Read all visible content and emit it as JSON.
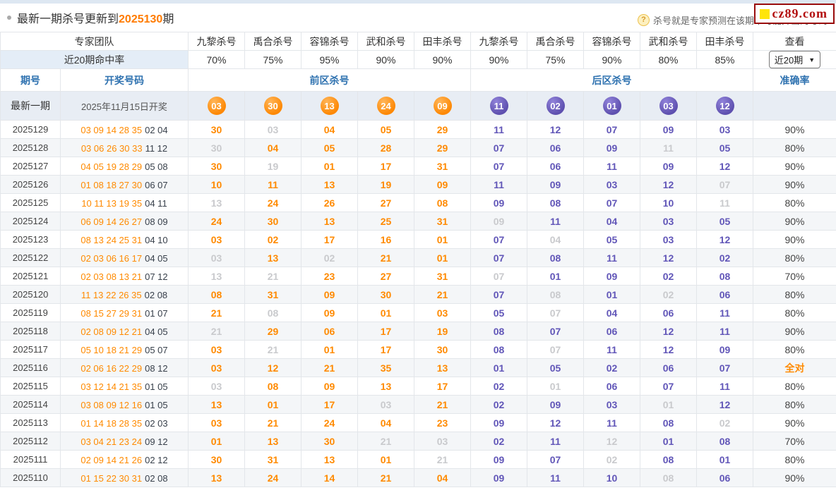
{
  "header_bar": {
    "title_prefix": "最新一期杀号更新到",
    "title_period": "2025130",
    "title_suffix": "期",
    "help_text": "杀号就是专家预测在该期不可能开出的号码",
    "logo_text": "cz89.com",
    "logo_border_color": "#990c0c",
    "logo_square_color": "#ffe50a"
  },
  "experts_header": {
    "team_label": "专家团队",
    "columns": [
      "九黎杀号",
      "禹合杀号",
      "容锦杀号",
      "武和杀号",
      "田丰杀号",
      "九黎杀号",
      "禹合杀号",
      "容锦杀号",
      "武和杀号",
      "田丰杀号"
    ],
    "view_label": "查看"
  },
  "hit_rate_row": {
    "label": "近20期命中率",
    "rates": [
      "70%",
      "75%",
      "95%",
      "90%",
      "90%",
      "90%",
      "75%",
      "90%",
      "80%",
      "85%"
    ],
    "select_value": "近20期"
  },
  "table_header": {
    "period": "期号",
    "draw_numbers": "开奖号码",
    "front_zone": "前区杀号",
    "back_zone": "后区杀号",
    "accuracy": "准确率"
  },
  "latest_row": {
    "label": "最新一期",
    "date": "2025年11月15日开奖",
    "front_kills": [
      "03",
      "30",
      "13",
      "24",
      "09"
    ],
    "back_kills": [
      "11",
      "02",
      "01",
      "03",
      "12"
    ]
  },
  "legend": {
    "gray_marker": "*",
    "gray_meaning": "kill number appeared in that draw (prediction missed), rendered gray"
  },
  "colors": {
    "front_accent": "#ff8a00",
    "back_accent": "#6156b8",
    "missed_gray": "#c9cacd",
    "header_blue": "#2f72b0",
    "latest_row_bg": "#e8edf4"
  },
  "rows": [
    {
      "period": "2025129",
      "front_draw": "03 09 14 28 35",
      "back_draw": "02 04",
      "front_kills": [
        "30",
        "*03",
        "04",
        "05",
        "29"
      ],
      "back_kills": [
        "11",
        "12",
        "07",
        "09",
        "03"
      ],
      "accuracy": "90%",
      "perfect": false
    },
    {
      "period": "2025128",
      "front_draw": "03 06 26 30 33",
      "back_draw": "11 12",
      "front_kills": [
        "*30",
        "04",
        "05",
        "28",
        "29"
      ],
      "back_kills": [
        "07",
        "06",
        "09",
        "*11",
        "05"
      ],
      "accuracy": "80%",
      "perfect": false
    },
    {
      "period": "2025127",
      "front_draw": "04 05 19 28 29",
      "back_draw": "05 08",
      "front_kills": [
        "30",
        "*19",
        "01",
        "17",
        "31"
      ],
      "back_kills": [
        "07",
        "06",
        "11",
        "09",
        "12"
      ],
      "accuracy": "90%",
      "perfect": false
    },
    {
      "period": "2025126",
      "front_draw": "01 08 18 27 30",
      "back_draw": "06 07",
      "front_kills": [
        "10",
        "11",
        "13",
        "19",
        "09"
      ],
      "back_kills": [
        "11",
        "09",
        "03",
        "12",
        "*07"
      ],
      "accuracy": "90%",
      "perfect": false
    },
    {
      "period": "2025125",
      "front_draw": "10 11 13 19 35",
      "back_draw": "04 11",
      "front_kills": [
        "*13",
        "24",
        "26",
        "27",
        "08"
      ],
      "back_kills": [
        "09",
        "08",
        "07",
        "10",
        "*11"
      ],
      "accuracy": "80%",
      "perfect": false
    },
    {
      "period": "2025124",
      "front_draw": "06 09 14 26 27",
      "back_draw": "08 09",
      "front_kills": [
        "24",
        "30",
        "13",
        "25",
        "31"
      ],
      "back_kills": [
        "*09",
        "11",
        "04",
        "03",
        "05"
      ],
      "accuracy": "90%",
      "perfect": false
    },
    {
      "period": "2025123",
      "front_draw": "08 13 24 25 31",
      "back_draw": "04 10",
      "front_kills": [
        "03",
        "02",
        "17",
        "16",
        "01"
      ],
      "back_kills": [
        "07",
        "*04",
        "05",
        "03",
        "12"
      ],
      "accuracy": "90%",
      "perfect": false
    },
    {
      "period": "2025122",
      "front_draw": "02 03 06 16 17",
      "back_draw": "04 05",
      "front_kills": [
        "*03",
        "13",
        "*02",
        "21",
        "01"
      ],
      "back_kills": [
        "07",
        "08",
        "11",
        "12",
        "02"
      ],
      "accuracy": "80%",
      "perfect": false
    },
    {
      "period": "2025121",
      "front_draw": "02 03 08 13 21",
      "back_draw": "07 12",
      "front_kills": [
        "*13",
        "*21",
        "23",
        "27",
        "31"
      ],
      "back_kills": [
        "*07",
        "01",
        "09",
        "02",
        "08"
      ],
      "accuracy": "70%",
      "perfect": false
    },
    {
      "period": "2025120",
      "front_draw": "11 13 22 26 35",
      "back_draw": "02 08",
      "front_kills": [
        "08",
        "31",
        "09",
        "30",
        "21"
      ],
      "back_kills": [
        "07",
        "*08",
        "01",
        "*02",
        "06"
      ],
      "accuracy": "80%",
      "perfect": false
    },
    {
      "period": "2025119",
      "front_draw": "08 15 27 29 31",
      "back_draw": "01 07",
      "front_kills": [
        "21",
        "*08",
        "09",
        "01",
        "03"
      ],
      "back_kills": [
        "05",
        "*07",
        "04",
        "06",
        "11"
      ],
      "accuracy": "80%",
      "perfect": false
    },
    {
      "period": "2025118",
      "front_draw": "02 08 09 12 21",
      "back_draw": "04 05",
      "front_kills": [
        "*21",
        "29",
        "06",
        "17",
        "19"
      ],
      "back_kills": [
        "08",
        "07",
        "06",
        "12",
        "11"
      ],
      "accuracy": "90%",
      "perfect": false
    },
    {
      "period": "2025117",
      "front_draw": "05 10 18 21 29",
      "back_draw": "05 07",
      "front_kills": [
        "03",
        "*21",
        "01",
        "17",
        "30"
      ],
      "back_kills": [
        "08",
        "*07",
        "11",
        "12",
        "09"
      ],
      "accuracy": "80%",
      "perfect": false
    },
    {
      "period": "2025116",
      "front_draw": "02 06 16 22 29",
      "back_draw": "08 12",
      "front_kills": [
        "03",
        "12",
        "21",
        "35",
        "13"
      ],
      "back_kills": [
        "01",
        "05",
        "02",
        "06",
        "07"
      ],
      "accuracy": "全对",
      "perfect": true
    },
    {
      "period": "2025115",
      "front_draw": "03 12 14 21 35",
      "back_draw": "01 05",
      "front_kills": [
        "*03",
        "08",
        "09",
        "13",
        "17"
      ],
      "back_kills": [
        "02",
        "*01",
        "06",
        "07",
        "11"
      ],
      "accuracy": "80%",
      "perfect": false
    },
    {
      "period": "2025114",
      "front_draw": "03 08 09 12 16",
      "back_draw": "01 05",
      "front_kills": [
        "13",
        "01",
        "17",
        "*03",
        "21"
      ],
      "back_kills": [
        "02",
        "09",
        "03",
        "*01",
        "12"
      ],
      "accuracy": "80%",
      "perfect": false
    },
    {
      "period": "2025113",
      "front_draw": "01 14 18 28 35",
      "back_draw": "02 03",
      "front_kills": [
        "03",
        "21",
        "24",
        "04",
        "23"
      ],
      "back_kills": [
        "09",
        "12",
        "11",
        "08",
        "*02"
      ],
      "accuracy": "90%",
      "perfect": false
    },
    {
      "period": "2025112",
      "front_draw": "03 04 21 23 24",
      "back_draw": "09 12",
      "front_kills": [
        "01",
        "13",
        "30",
        "*21",
        "*03"
      ],
      "back_kills": [
        "02",
        "11",
        "*12",
        "01",
        "08"
      ],
      "accuracy": "70%",
      "perfect": false
    },
    {
      "period": "2025111",
      "front_draw": "02 09 14 21 26",
      "back_draw": "02 12",
      "front_kills": [
        "30",
        "31",
        "13",
        "01",
        "*21"
      ],
      "back_kills": [
        "09",
        "07",
        "*02",
        "08",
        "01"
      ],
      "accuracy": "80%",
      "perfect": false
    },
    {
      "period": "2025110",
      "front_draw": "01 15 22 30 31",
      "back_draw": "02 08",
      "front_kills": [
        "13",
        "24",
        "14",
        "21",
        "04"
      ],
      "back_kills": [
        "09",
        "11",
        "10",
        "*08",
        "06"
      ],
      "accuracy": "90%",
      "perfect": false
    }
  ]
}
